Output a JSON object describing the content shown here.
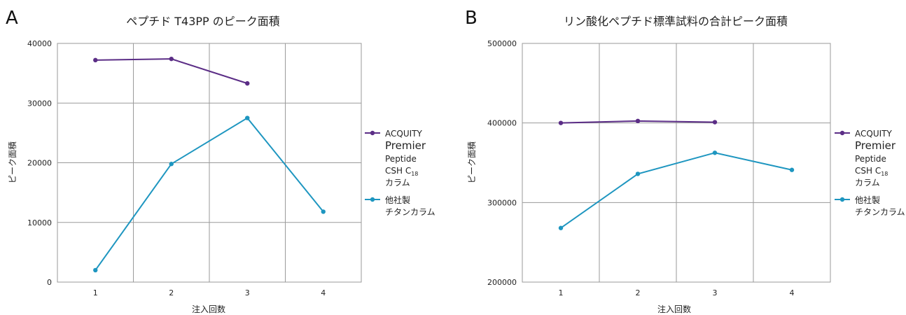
{
  "chart_data": [
    {
      "type": "line",
      "panel_label": "A",
      "title": "ペプチド T43PP のピーク面積",
      "xlabel": "注入回数",
      "ylabel": "ピーク面積",
      "categories": [
        "1",
        "2",
        "3",
        "4"
      ],
      "ylim": [
        0,
        40000
      ],
      "yticks": [
        0,
        10000,
        20000,
        30000,
        40000
      ],
      "grid": true,
      "legend_position": "right",
      "series": [
        {
          "name": "ACQUITY Premier Peptide CSH C18 カラム",
          "color": "#5b2d86",
          "values": [
            37200,
            37400,
            33300,
            null
          ]
        },
        {
          "name": "他社製 チタンカラム",
          "color": "#1e96c0",
          "values": [
            2000,
            19800,
            27500,
            11800
          ]
        }
      ]
    },
    {
      "type": "line",
      "panel_label": "B",
      "title": "リン酸化ペプチド標準試料の合計ピーク面積",
      "xlabel": "注入回数",
      "ylabel": "ピーク面積",
      "categories": [
        "1",
        "2",
        "3",
        "4"
      ],
      "ylim": [
        200000,
        500000
      ],
      "yticks": [
        200000,
        300000,
        400000,
        500000
      ],
      "grid": true,
      "legend_position": "right",
      "series": [
        {
          "name": "ACQUITY Premier Peptide CSH C18 カラム",
          "color": "#5b2d86",
          "values": [
            400000,
            402500,
            401000,
            null
          ]
        },
        {
          "name": "他社製 チタンカラム",
          "color": "#1e96c0",
          "values": [
            268000,
            336000,
            362500,
            341000
          ]
        }
      ]
    }
  ],
  "legend": {
    "acquity": {
      "line1": "ACQUITY",
      "line2": "Premier",
      "line3": "Peptide",
      "line4_base": "CSH C",
      "line4_sub": "18",
      "line5": "カラム"
    },
    "other": {
      "line1": "他社製",
      "line2": "チタンカラム"
    }
  }
}
